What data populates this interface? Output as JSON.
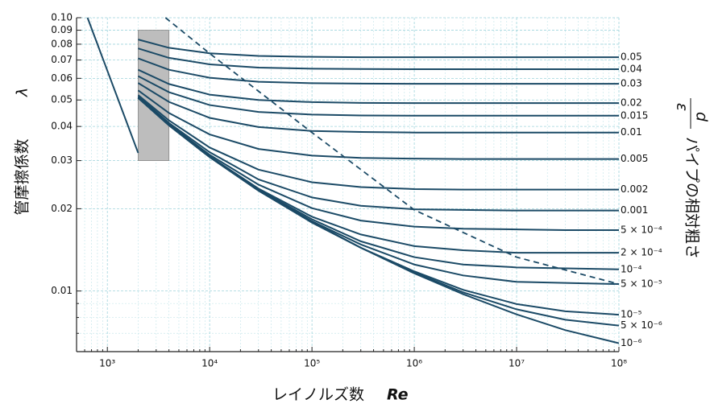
{
  "chart_data": {
    "type": "line",
    "x_label": "レイノルズ数",
    "x_symbol": "Re",
    "y_label": "管摩擦係数",
    "y_symbol": "λ",
    "y2_label": "パイプの相対粗さ",
    "y2_symbol_top": "ε",
    "y2_symbol_bottom": "d",
    "log_x": true,
    "log_y": true,
    "grid": true,
    "xlim": [
      500,
      100000000
    ],
    "ylim": [
      0.006,
      0.1
    ],
    "xticks": [
      {
        "value": 1000,
        "label": "10³"
      },
      {
        "value": 10000,
        "label": "10⁴"
      },
      {
        "value": 100000,
        "label": "10⁵"
      },
      {
        "value": 1000000,
        "label": "10⁶"
      },
      {
        "value": 10000000,
        "label": "10⁷"
      },
      {
        "value": 100000000,
        "label": "10⁸"
      }
    ],
    "xminor": [
      600,
      700,
      800,
      900,
      2000,
      3000,
      4000,
      5000,
      6000,
      7000,
      8000,
      9000,
      20000,
      30000,
      40000,
      50000,
      60000,
      70000,
      80000,
      90000,
      200000,
      300000,
      400000,
      500000,
      600000,
      700000,
      800000,
      900000,
      2000000,
      3000000,
      4000000,
      5000000,
      6000000,
      7000000,
      8000000,
      9000000,
      20000000,
      30000000,
      40000000,
      50000000,
      60000000,
      70000000,
      80000000,
      90000000
    ],
    "yticks": [
      {
        "value": 0.1,
        "label": "0.10"
      },
      0.09,
      0.08,
      0.07,
      0.06,
      0.05,
      0.04,
      0.03,
      0.02,
      0.01
    ],
    "yminor": [
      0.009,
      0.008,
      0.007
    ],
    "critical_zone": {
      "x": [
        2000,
        4000
      ],
      "y": [
        0.03,
        0.09
      ],
      "color": "#bdbdbd"
    },
    "laminar": {
      "x": [
        640,
        2000
      ],
      "values": [
        0.1,
        0.032
      ]
    },
    "fully_rough_boundary": {
      "x": [
        3700,
        10000,
        100000,
        1000000,
        10000000,
        100000000
      ],
      "values": [
        0.1,
        0.074,
        0.038,
        0.0198,
        0.0133,
        0.0106
      ],
      "dashed": true
    },
    "color": "#1b4a66",
    "x": [
      2000,
      4000,
      10000,
      30000,
      100000,
      300000,
      1000000,
      3000000,
      10000000,
      30000000,
      100000000
    ],
    "series": [
      {
        "name": "0.05",
        "values": [
          0.0832,
          0.0776,
          0.0741,
          0.0725,
          0.0719,
          0.0717,
          0.0717,
          0.0717,
          0.0717,
          0.0717,
          0.0717
        ]
      },
      {
        "name": "0.04",
        "values": [
          0.0772,
          0.0713,
          0.0675,
          0.0657,
          0.0651,
          0.0649,
          0.0648,
          0.0648,
          0.0648,
          0.0648,
          0.0648
        ]
      },
      {
        "name": "0.03",
        "values": [
          0.071,
          0.0645,
          0.0603,
          0.0583,
          0.0576,
          0.0574,
          0.0573,
          0.0573,
          0.0573,
          0.0573,
          0.0573
        ]
      },
      {
        "name": "0.02",
        "values": [
          0.0645,
          0.0572,
          0.0523,
          0.05,
          0.0491,
          0.0488,
          0.0487,
          0.0487,
          0.0487,
          0.0487,
          0.0487
        ]
      },
      {
        "name": "0.015",
        "values": [
          0.0611,
          0.0534,
          0.0479,
          0.0452,
          0.0442,
          0.0439,
          0.0438,
          0.0438,
          0.0438,
          0.0438,
          0.0438
        ]
      },
      {
        "name": "0.01",
        "values": [
          0.0577,
          0.0492,
          0.043,
          0.0398,
          0.0385,
          0.0382,
          0.038,
          0.038,
          0.038,
          0.038,
          0.038
        ]
      },
      {
        "name": "0.005",
        "values": [
          0.0542,
          0.0448,
          0.0374,
          0.0331,
          0.0313,
          0.0307,
          0.0305,
          0.0304,
          0.0304,
          0.0304,
          0.0304
        ]
      },
      {
        "name": "0.002",
        "values": [
          0.0521,
          0.0421,
          0.0335,
          0.0278,
          0.025,
          0.024,
          0.0236,
          0.0235,
          0.0235,
          0.0235,
          0.0235
        ]
      },
      {
        "name": "0.001",
        "values": [
          0.0515,
          0.0412,
          0.0322,
          0.0256,
          0.022,
          0.0205,
          0.0199,
          0.0198,
          0.0197,
          0.0197,
          0.0197
        ]
      },
      {
        "name": "5 × 10⁻⁴",
        "values": [
          0.0512,
          0.0408,
          0.0315,
          0.0245,
          0.0201,
          0.0181,
          0.0172,
          0.0169,
          0.0168,
          0.0167,
          0.0167
        ]
      },
      {
        "name": "2 × 10⁻⁴",
        "values": [
          0.051,
          0.0405,
          0.0311,
          0.0237,
          0.0187,
          0.0161,
          0.0146,
          0.0141,
          0.0138,
          0.0138,
          0.0138
        ]
      },
      {
        "name": "10⁻⁴",
        "values": [
          0.0509,
          0.0405,
          0.031,
          0.0235,
          0.0183,
          0.0152,
          0.0133,
          0.0125,
          0.0122,
          0.0121,
          0.012
        ]
      },
      {
        "name": "5 × 10⁻⁵",
        "values": [
          0.0509,
          0.0404,
          0.0309,
          0.0234,
          0.018,
          0.0148,
          0.0125,
          0.0114,
          0.0108,
          0.0107,
          0.0106
        ]
      },
      {
        "name": "10⁻⁵",
        "values": [
          0.0509,
          0.0404,
          0.0309,
          0.0233,
          0.0179,
          0.0144,
          0.0118,
          0.0101,
          0.00896,
          0.00843,
          0.00819
        ]
      },
      {
        "name": "5 × 10⁻⁶",
        "values": [
          0.0509,
          0.0404,
          0.0309,
          0.0233,
          0.0178,
          0.0144,
          0.0117,
          0.00989,
          0.00857,
          0.00785,
          0.00747
        ]
      },
      {
        "name": "10⁻⁶",
        "values": [
          0.0509,
          0.0404,
          0.0309,
          0.0233,
          0.0178,
          0.0144,
          0.0116,
          0.00974,
          0.00821,
          0.00719,
          0.00644
        ]
      }
    ]
  }
}
